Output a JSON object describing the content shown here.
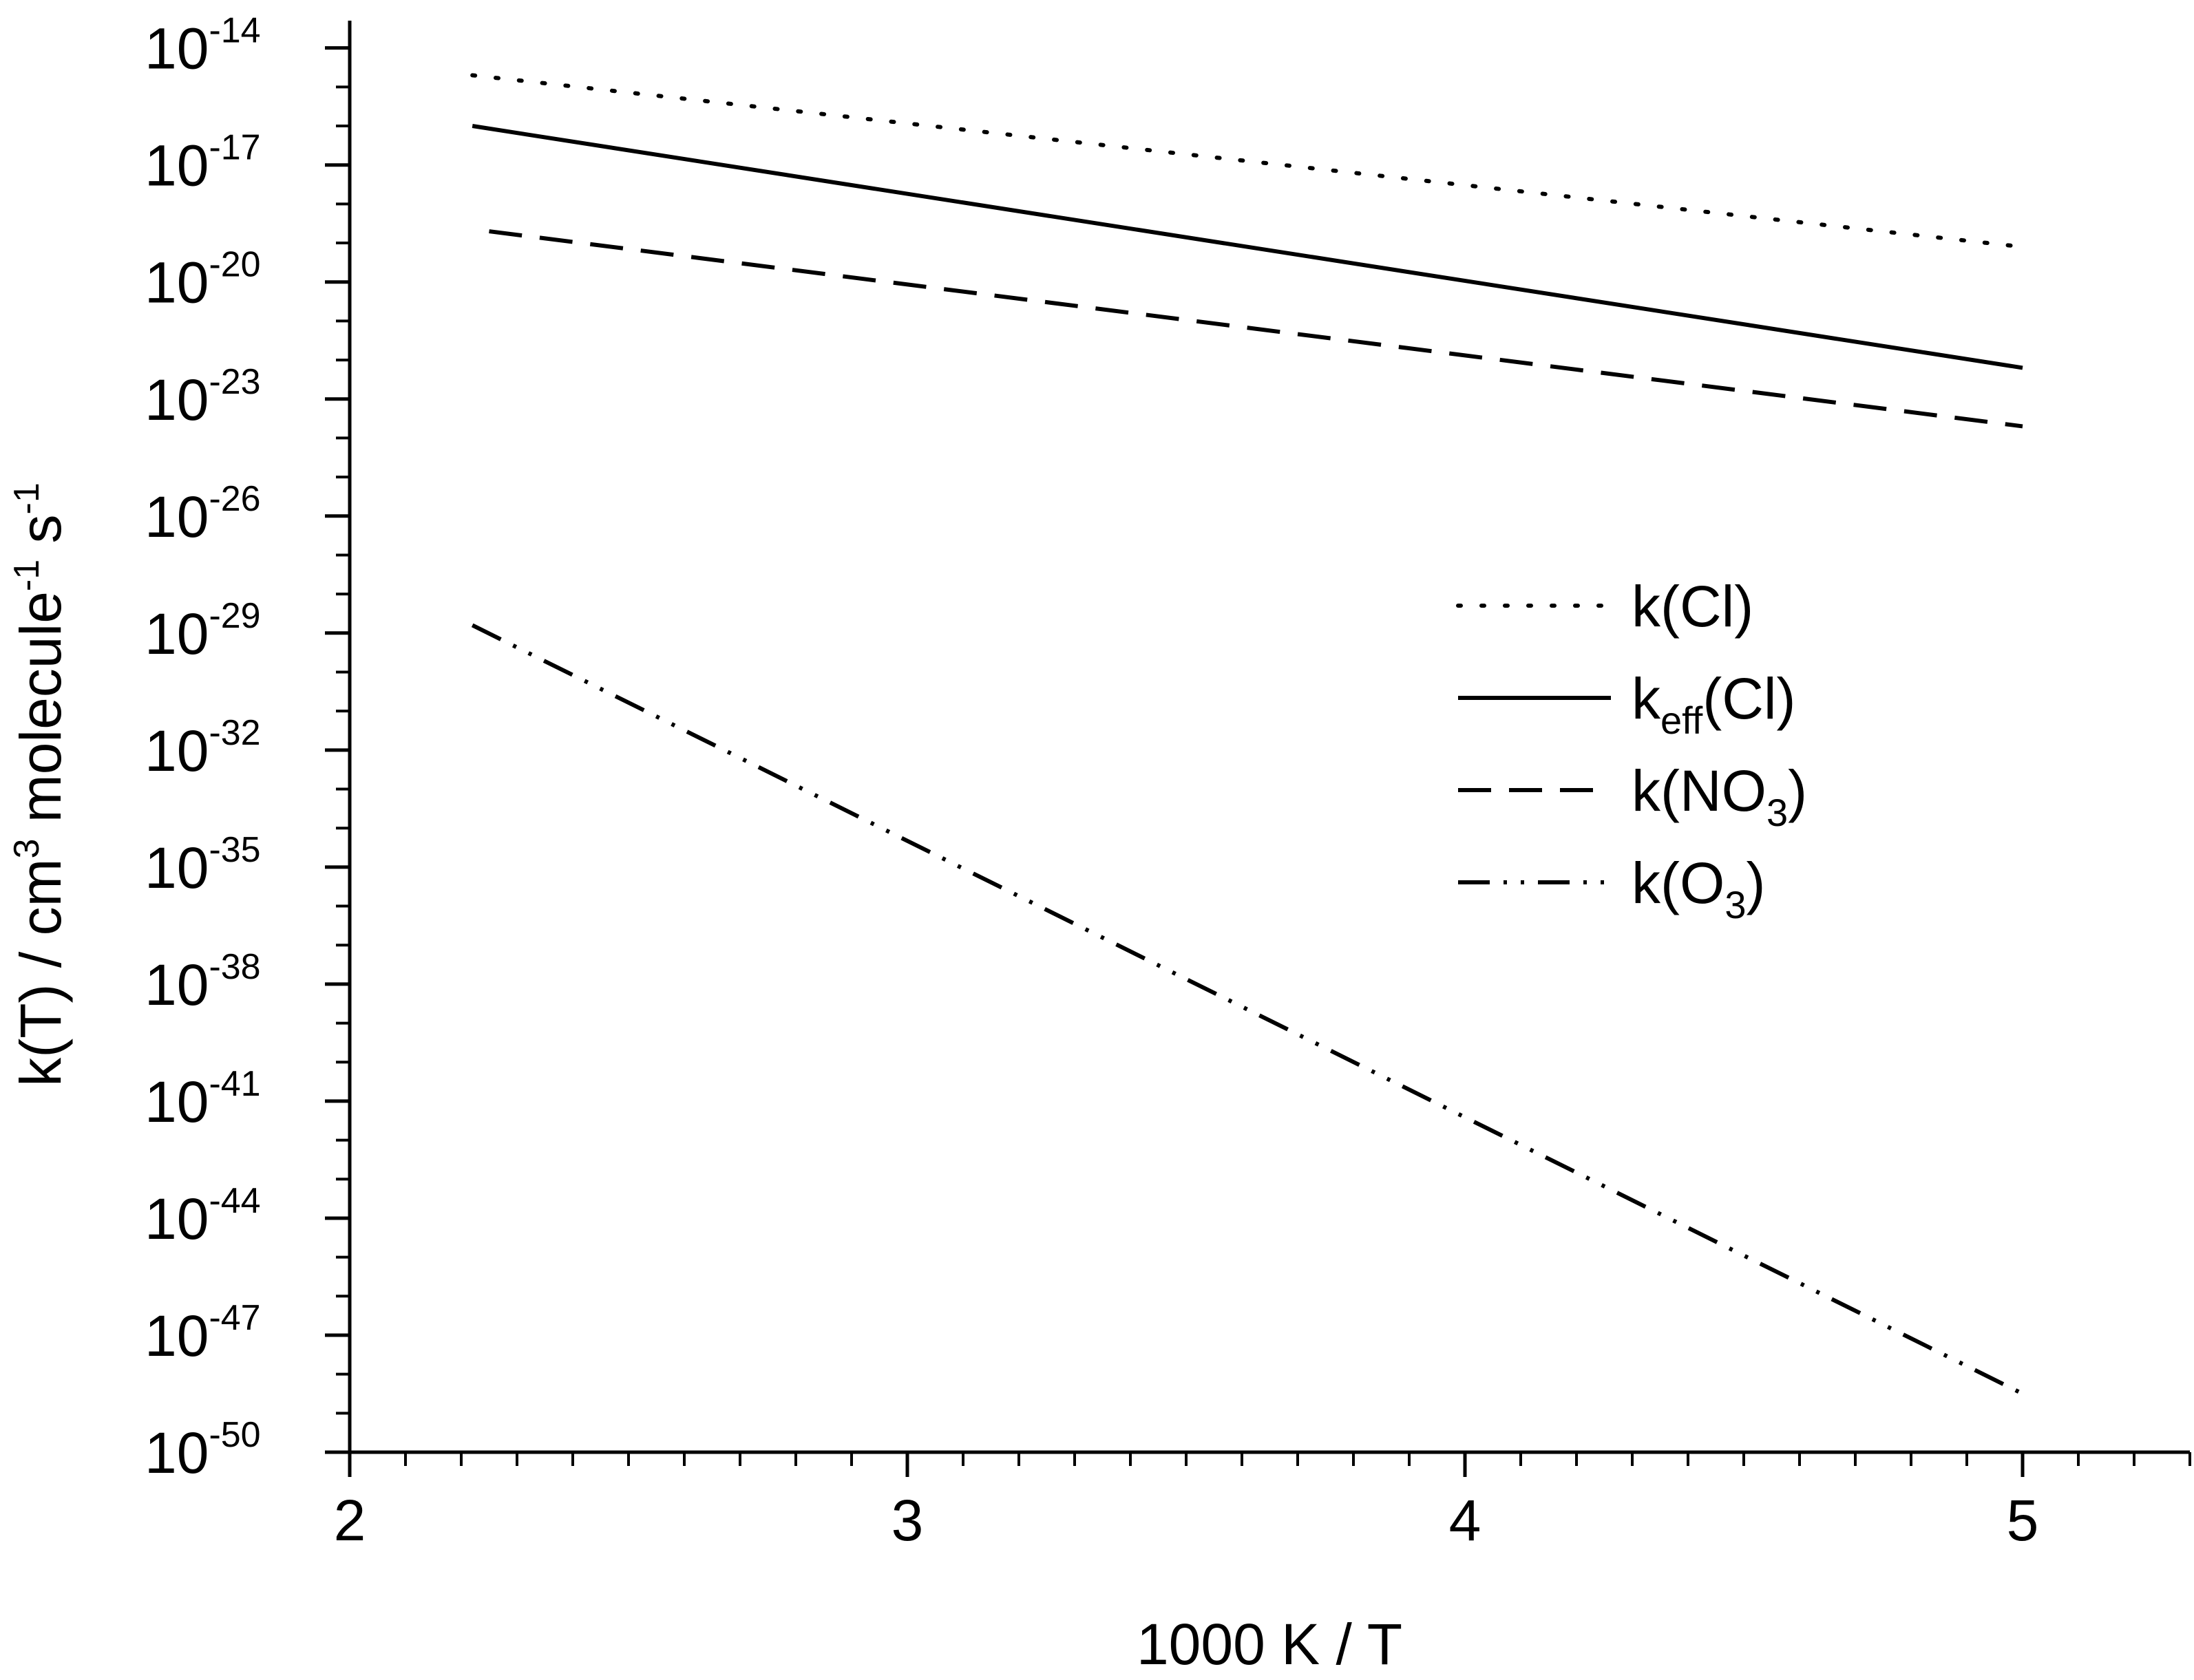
{
  "chart_data": {
    "type": "line",
    "title": "",
    "xlabel": "1000 K / T",
    "ylabel": {
      "base": "k(T) / cm",
      "sup1": "3",
      "mid": " molecule",
      "sup2": "-1",
      "end": " s",
      "sup3": "-1"
    },
    "xlim": [
      2,
      5.3
    ],
    "ylim_log10": [
      -50,
      -13.3
    ],
    "yscale": "log",
    "x_ticks": [
      "2",
      "3",
      "4",
      "5"
    ],
    "x_tick_values": [
      2,
      3,
      4,
      5
    ],
    "y_ticks": [
      {
        "base": "10",
        "exp": "-14"
      },
      {
        "base": "10",
        "exp": "-17"
      },
      {
        "base": "10",
        "exp": "-20"
      },
      {
        "base": "10",
        "exp": "-23"
      },
      {
        "base": "10",
        "exp": "-26"
      },
      {
        "base": "10",
        "exp": "-29"
      },
      {
        "base": "10",
        "exp": "-32"
      },
      {
        "base": "10",
        "exp": "-35"
      },
      {
        "base": "10",
        "exp": "-38"
      },
      {
        "base": "10",
        "exp": "-41"
      },
      {
        "base": "10",
        "exp": "-44"
      },
      {
        "base": "10",
        "exp": "-47"
      },
      {
        "base": "10",
        "exp": "-50"
      }
    ],
    "y_tick_exponents": [
      -14,
      -17,
      -20,
      -23,
      -26,
      -29,
      -32,
      -35,
      -38,
      -41,
      -44,
      -47,
      -50
    ],
    "grid": false,
    "legend_position": "center-right",
    "series": [
      {
        "name": "k(Cl)",
        "legend": {
          "main": "k(Cl)",
          "sub": "",
          "tail": ""
        },
        "dash": "dotted",
        "x": [
          2.22,
          5.0
        ],
        "log10_y": [
          -14.7,
          -19.1
        ]
      },
      {
        "name": "keff(Cl)",
        "legend": {
          "main": "k",
          "sub": "eff",
          "tail": "(Cl)"
        },
        "dash": "solid",
        "x": [
          2.22,
          5.0
        ],
        "log10_y": [
          -16.0,
          -22.2
        ]
      },
      {
        "name": "k(NO3)",
        "legend": {
          "main": "k(NO",
          "sub": "3",
          "tail": ")"
        },
        "dash": "dashed",
        "x": [
          2.25,
          5.0
        ],
        "log10_y": [
          -18.7,
          -23.7
        ]
      },
      {
        "name": "k(O3)",
        "legend": {
          "main": "k(O",
          "sub": "3",
          "tail": ")"
        },
        "dash": "dashdotdot",
        "x": [
          2.22,
          5.0
        ],
        "log10_y": [
          -28.8,
          -48.5
        ]
      }
    ]
  }
}
